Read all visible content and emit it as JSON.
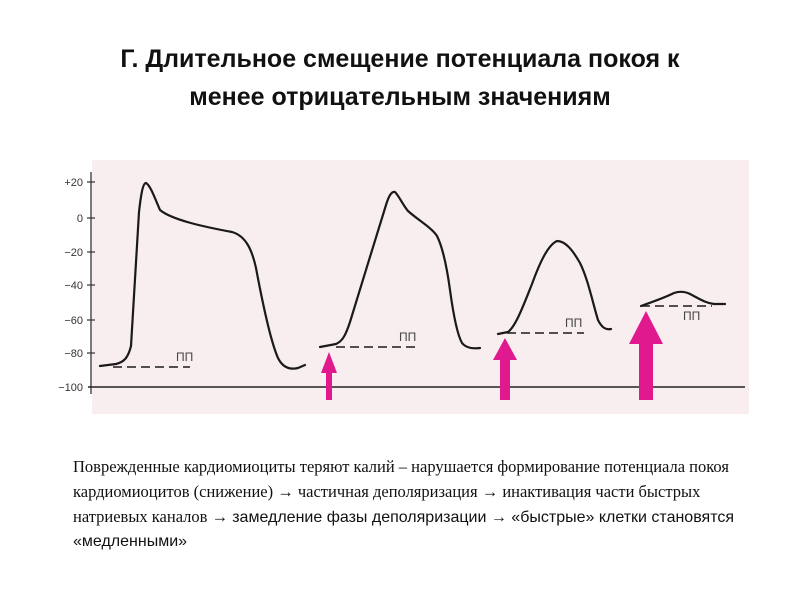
{
  "title": {
    "line1": "Г. Длительное смещение потенциала покоя к",
    "line2": "менее отрицательным значениям"
  },
  "chart": {
    "y_ticks": [
      "+20",
      "0",
      "−20",
      "−40",
      "−60",
      "−80",
      "−100"
    ],
    "pp_label": "ПП",
    "arrow_color": "#e0198f",
    "panel_color": "#f8eef0"
  },
  "caption": {
    "serif_part": "Поврежденные кардиомиоциты теряют калий – нарушается формирование потенциала покоя кардиомиоцитов (снижение) → частичная деполяризация → инактивация части быстрых натриевых каналов → ",
    "sans_part": "замедление фазы деполяризации → «быстрые» клетки становятся «медленными»"
  }
}
